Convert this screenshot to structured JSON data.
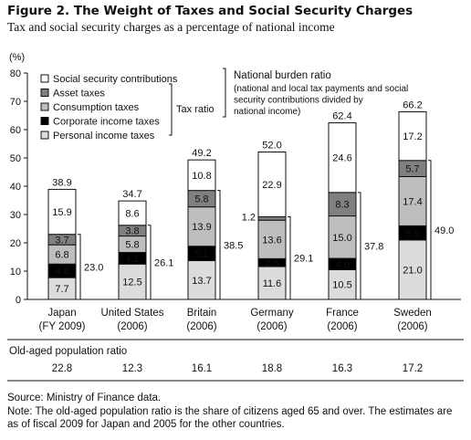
{
  "title": "Figure 2. The Weight of Taxes and Social Security Charges",
  "subtitle": "Tax and social security charges as a percentage of national income",
  "source": "Source: Ministry of Finance data.",
  "note": "Note: The old-aged population ratio is the share of citizens aged 65 and over. The estimates are as of fiscal 2009 for Japan and 2005 for the other countries.",
  "chart_data": {
    "type": "bar",
    "stacked": true,
    "ylabel": "(%)",
    "ylim": [
      0,
      80
    ],
    "yticks": [
      "0",
      "10",
      "20",
      "30",
      "40",
      "50",
      "60",
      "70",
      "80"
    ],
    "categories": [
      "Japan",
      "United States",
      "Britain",
      "Germany",
      "France",
      "Sweden"
    ],
    "category_sublabels": [
      "(FY 2009)",
      "(2006)",
      "(2006)",
      "(2006)",
      "(2006)",
      "(2006)"
    ],
    "series": [
      {
        "name": "Personal income taxes",
        "color": "#dcdcdc",
        "values": [
          7.7,
          12.5,
          13.7,
          11.6,
          10.5,
          21.0
        ],
        "labels": [
          "7.7",
          "12.5",
          "13.7",
          "11.6",
          "10.5",
          "21.0"
        ]
      },
      {
        "name": "Corporate income taxes",
        "color": "#000000",
        "values": [
          4.8,
          4.1,
          5.1,
          2.8,
          4.0,
          5.0
        ],
        "labels": [
          "4.8",
          "4.1",
          "5.1",
          "2.8",
          "4.0",
          "5.0"
        ]
      },
      {
        "name": "Consumption taxes",
        "color": "#bebebe",
        "values": [
          6.8,
          5.8,
          13.9,
          13.6,
          15.0,
          17.4
        ],
        "labels": [
          "6.8",
          "5.8",
          "13.9",
          "13.6",
          "15.0",
          "17.4"
        ]
      },
      {
        "name": "Asset taxes",
        "color": "#808080",
        "values": [
          3.7,
          3.8,
          5.8,
          1.2,
          8.3,
          5.7
        ],
        "labels": [
          "3.7",
          "3.8",
          "5.8",
          "1.2",
          "8.3",
          "5.7"
        ]
      },
      {
        "name": "Social security contributions",
        "color": "#ffffff",
        "values": [
          15.9,
          8.6,
          10.8,
          22.9,
          24.6,
          17.2
        ],
        "labels": [
          "15.9",
          "8.6",
          "10.8",
          "22.9",
          "24.6",
          "17.2"
        ]
      }
    ],
    "totals": [
      "38.9",
      "34.7",
      "49.2",
      "52.0",
      "62.4",
      "66.2"
    ],
    "tax_ratio": [
      "23.0",
      "26.1",
      "38.5",
      "29.1",
      "37.8",
      "49.0"
    ],
    "tax_ratio_label": "Tax ratio",
    "burden_label": "National burden ratio",
    "burden_desc": [
      "(national and local tax payments and social",
      "security contributions divided by",
      "national income)"
    ],
    "old_age_label": "Old-aged population ratio",
    "old_age_values": [
      "22.8",
      "12.3",
      "16.1",
      "18.8",
      "16.3",
      "17.2"
    ]
  }
}
